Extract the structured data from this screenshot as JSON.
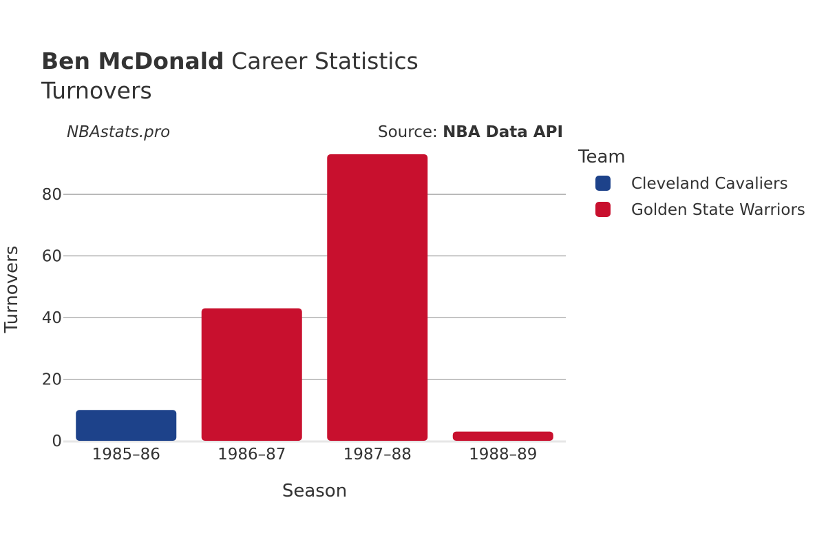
{
  "header": {
    "title_bold": "Ben McDonald",
    "title_rest": " Career Statistics",
    "subtitle": "Turnovers",
    "watermark": "NBAstats.pro",
    "source_prefix": "Source: ",
    "source_name": "NBA Data API"
  },
  "legend": {
    "title": "Team",
    "items": [
      {
        "label": "Cleveland Cavaliers",
        "color": "#1d428a"
      },
      {
        "label": "Golden State Warriors",
        "color": "#c8102e"
      }
    ]
  },
  "chart_data": {
    "type": "bar",
    "title": "Ben McDonald Career Statistics",
    "subtitle": "Turnovers",
    "xlabel": "Season",
    "ylabel": "Turnovers",
    "categories": [
      "1985–86",
      "1986–87",
      "1987–88",
      "1988–89"
    ],
    "series": [
      {
        "name": "Cleveland Cavaliers",
        "color": "#1d428a",
        "values": [
          10,
          null,
          null,
          null
        ]
      },
      {
        "name": "Golden State Warriors",
        "color": "#c8102e",
        "values": [
          null,
          43,
          93,
          3
        ]
      }
    ],
    "ylim": [
      0,
      95
    ],
    "yticks": [
      0,
      20,
      40,
      60,
      80
    ],
    "grid": true,
    "legend_position": "right"
  }
}
